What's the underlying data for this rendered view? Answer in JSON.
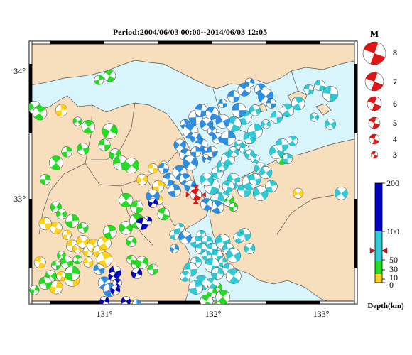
{
  "title": "Period:2004/06/03 00:00‐‐2014/06/03 12:05",
  "map": {
    "lon_labels": [
      "131°",
      "132°",
      "133°"
    ],
    "lat_labels": [
      "34°",
      "33°"
    ],
    "lon_ticks": [
      131,
      132,
      133
    ],
    "lat_ticks": [
      34,
      33
    ],
    "extent": {
      "lon_min": 130.3,
      "lon_max": 133.35,
      "lat_min": 32.4,
      "lat_max": 34.3
    },
    "colors": {
      "sea": "#d8f5fc",
      "land": "#f7dfbd",
      "coast": "#555555"
    }
  },
  "magnitude_legend": {
    "title": "M",
    "levels": [
      "8",
      "7",
      "6",
      "5",
      "4",
      "3"
    ]
  },
  "depth_legend": {
    "title": "Depth(km)",
    "tick_labels": [
      "200",
      "100",
      "50",
      "30",
      "10",
      "0"
    ],
    "colors": {
      "shallow": "#ffd21a",
      "mid": "#22dd22",
      "deep": "#2ecbd6",
      "deeper": "#2b8fe8",
      "deepest": "#0000c0"
    },
    "marker_value": 60
  },
  "events": {
    "main_event": {
      "lon": 131.85,
      "lat": 33.19,
      "mag": 4,
      "color": "#e01515"
    },
    "yellow": [
      [
        130.55,
        32.95
      ],
      [
        130.65,
        32.9
      ],
      [
        130.7,
        32.82
      ],
      [
        130.75,
        32.8
      ],
      [
        130.8,
        32.85
      ],
      [
        130.85,
        32.78
      ],
      [
        130.9,
        32.82
      ],
      [
        130.95,
        32.78
      ],
      [
        131.0,
        32.84
      ],
      [
        130.45,
        32.98
      ],
      [
        130.6,
        32.6
      ],
      [
        130.7,
        32.58
      ],
      [
        130.85,
        32.7
      ],
      [
        131.0,
        32.72
      ],
      [
        130.4,
        32.7
      ],
      [
        130.55,
        32.52
      ],
      [
        131.45,
        33.38
      ],
      [
        131.5,
        33.25
      ],
      [
        131.6,
        33.28
      ],
      [
        131.5,
        33.15
      ],
      [
        131.35,
        33.3
      ],
      [
        131.55,
        33.4
      ],
      [
        132.8,
        33.2
      ],
      [
        130.6,
        33.8
      ]
    ],
    "green": [
      [
        130.35,
        33.82
      ],
      [
        130.4,
        33.78
      ],
      [
        130.95,
        34.02
      ],
      [
        131.05,
        34.05
      ],
      [
        130.75,
        33.72
      ],
      [
        130.85,
        33.68
      ],
      [
        131.05,
        33.65
      ],
      [
        131.0,
        33.55
      ],
      [
        131.1,
        33.48
      ],
      [
        130.8,
        33.52
      ],
      [
        130.65,
        33.5
      ],
      [
        130.55,
        33.42
      ],
      [
        130.45,
        33.3
      ],
      [
        131.15,
        33.42
      ],
      [
        131.25,
        33.4
      ],
      [
        131.2,
        33.15
      ],
      [
        131.3,
        33.1
      ],
      [
        130.55,
        33.1
      ],
      [
        130.6,
        33.05
      ],
      [
        130.7,
        33.0
      ],
      [
        130.8,
        32.95
      ],
      [
        130.6,
        32.75
      ],
      [
        130.65,
        32.7
      ],
      [
        130.55,
        32.68
      ],
      [
        130.5,
        32.6
      ],
      [
        130.45,
        32.55
      ],
      [
        130.35,
        32.5
      ],
      [
        130.7,
        32.62
      ],
      [
        130.75,
        32.72
      ],
      [
        131.05,
        32.92
      ],
      [
        131.2,
        32.95
      ],
      [
        131.25,
        32.85
      ],
      [
        131.3,
        32.68
      ],
      [
        131.25,
        32.72
      ],
      [
        131.35,
        32.7
      ],
      [
        131.3,
        33.0
      ],
      [
        131.55,
        33.05
      ],
      [
        131.45,
        32.65
      ],
      [
        132.05,
        32.52
      ],
      [
        132.0,
        32.48
      ],
      [
        132.1,
        32.45
      ],
      [
        132.05,
        32.38
      ],
      [
        131.95,
        32.42
      ],
      [
        132.65,
        33.45
      ],
      [
        132.15,
        33.15
      ],
      [
        132.2,
        33.1
      ]
    ],
    "cyan": [
      [
        132.05,
        33.35
      ],
      [
        132.1,
        33.4
      ],
      [
        132.15,
        33.45
      ],
      [
        132.2,
        33.5
      ],
      [
        132.25,
        33.55
      ],
      [
        132.3,
        33.52
      ],
      [
        132.35,
        33.48
      ],
      [
        132.4,
        33.45
      ],
      [
        132.45,
        33.38
      ],
      [
        132.5,
        33.35
      ],
      [
        132.2,
        33.3
      ],
      [
        132.25,
        33.25
      ],
      [
        132.3,
        33.22
      ],
      [
        132.35,
        33.28
      ],
      [
        132.4,
        33.3
      ],
      [
        132.45,
        33.2
      ],
      [
        132.55,
        33.25
      ],
      [
        132.6,
        33.5
      ],
      [
        132.65,
        33.55
      ],
      [
        132.1,
        33.2
      ],
      [
        132.15,
        33.25
      ],
      [
        132.0,
        33.25
      ],
      [
        131.95,
        33.3
      ],
      [
        132.05,
        33.15
      ],
      [
        132.35,
        33.6
      ],
      [
        132.4,
        33.65
      ],
      [
        132.5,
        33.7
      ],
      [
        132.6,
        33.75
      ],
      [
        132.7,
        33.8
      ],
      [
        132.8,
        33.85
      ],
      [
        132.9,
        33.95
      ],
      [
        133.0,
        33.98
      ],
      [
        133.1,
        33.92
      ],
      [
        132.95,
        33.75
      ],
      [
        132.75,
        33.58
      ],
      [
        132.7,
        33.45
      ],
      [
        133.1,
        33.7
      ],
      [
        133.2,
        33.2
      ],
      [
        132.3,
        33.75
      ],
      [
        132.4,
        33.8
      ],
      [
        132.2,
        33.7
      ],
      [
        131.9,
        32.9
      ],
      [
        131.95,
        32.85
      ],
      [
        132.0,
        32.8
      ],
      [
        132.05,
        32.75
      ],
      [
        132.1,
        32.7
      ],
      [
        132.15,
        32.65
      ],
      [
        132.2,
        32.6
      ],
      [
        131.85,
        32.85
      ],
      [
        131.9,
        32.8
      ],
      [
        131.95,
        32.75
      ],
      [
        132.0,
        32.68
      ],
      [
        132.05,
        32.62
      ],
      [
        131.85,
        32.7
      ],
      [
        131.8,
        32.65
      ],
      [
        131.75,
        32.6
      ],
      [
        132.1,
        32.85
      ],
      [
        132.15,
        32.8
      ],
      [
        132.2,
        32.75
      ],
      [
        131.7,
        32.95
      ],
      [
        131.65,
        32.9
      ],
      [
        132.3,
        32.9
      ],
      [
        132.35,
        32.8
      ],
      [
        132.25,
        32.88
      ],
      [
        131.9,
        32.55
      ],
      [
        131.85,
        32.52
      ],
      [
        132.0,
        32.55
      ]
    ],
    "blue": [
      [
        131.75,
        33.7
      ],
      [
        131.8,
        33.65
      ],
      [
        131.85,
        33.6
      ],
      [
        131.9,
        33.55
      ],
      [
        131.95,
        33.5
      ],
      [
        131.85,
        33.75
      ],
      [
        131.9,
        33.8
      ],
      [
        131.95,
        33.7
      ],
      [
        132.0,
        33.65
      ],
      [
        132.05,
        33.6
      ],
      [
        132.1,
        33.72
      ],
      [
        131.7,
        33.55
      ],
      [
        131.75,
        33.48
      ],
      [
        131.8,
        33.42
      ],
      [
        131.85,
        33.5
      ],
      [
        131.95,
        33.45
      ],
      [
        132.0,
        33.5
      ],
      [
        131.7,
        33.35
      ],
      [
        131.6,
        33.3
      ],
      [
        131.75,
        33.3
      ],
      [
        131.8,
        33.25
      ],
      [
        131.55,
        33.38
      ],
      [
        131.65,
        33.22
      ],
      [
        132.05,
        33.1
      ],
      [
        131.95,
        33.12
      ],
      [
        132.1,
        33.85
      ],
      [
        132.2,
        33.9
      ],
      [
        132.3,
        33.95
      ],
      [
        132.35,
        34.0
      ],
      [
        132.45,
        33.95
      ],
      [
        132.5,
        33.9
      ],
      [
        132.55,
        33.85
      ],
      [
        132.25,
        33.8
      ],
      [
        132.15,
        33.6
      ],
      [
        131.75,
        32.88
      ],
      [
        131.65,
        32.8
      ],
      [
        132.0,
        33.78
      ],
      [
        131.45,
        33.18
      ],
      [
        130.95,
        32.65
      ],
      [
        131.0,
        32.55
      ],
      [
        131.05,
        32.5
      ],
      [
        131.3,
        32.4
      ]
    ],
    "navy": [
      [
        131.45,
        33.13
      ],
      [
        131.4,
        33.0
      ],
      [
        131.35,
        32.98
      ],
      [
        131.1,
        32.63
      ],
      [
        131.08,
        32.6
      ],
      [
        131.12,
        32.55
      ],
      [
        131.1,
        32.5
      ],
      [
        131.0,
        32.42
      ],
      [
        131.2,
        32.42
      ],
      [
        131.3,
        32.62
      ]
    ]
  }
}
